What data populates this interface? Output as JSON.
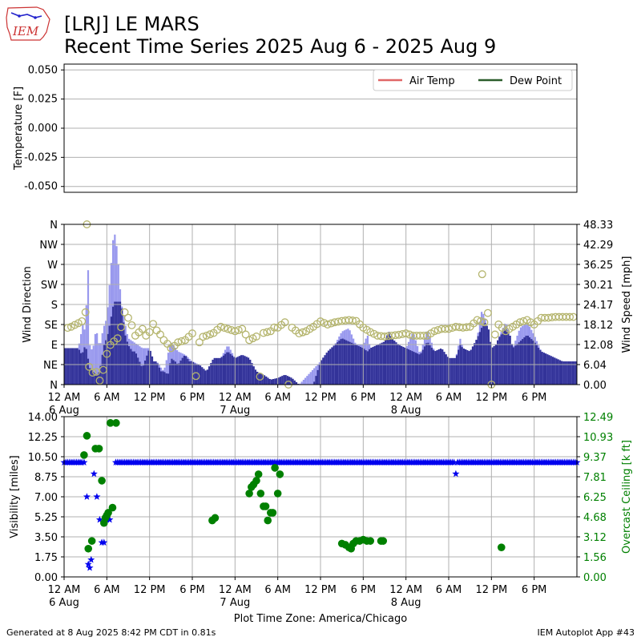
{
  "header": {
    "title_line1": "[LRJ] LE MARS",
    "title_line2": "Recent Time Series 2025 Aug 6 - 2025 Aug 9",
    "logo_text": "IEM"
  },
  "footer": {
    "left": "Generated at 8 Aug 2025 8:42 PM CDT in 0.81s",
    "right": "IEM Autoplot App #43"
  },
  "colors": {
    "air_temp": "#e06666",
    "dew_point": "#2b5d2b",
    "gust_bar": "#9999ee",
    "speed_bar": "#333399",
    "direction": "#b5b56e",
    "visibility": "#0000ee",
    "ceiling": "#008000",
    "grid": "#b0b0b0"
  },
  "chart_data": [
    {
      "type": "line",
      "name": "temperature",
      "ylabel": "Temperature [F]",
      "ylim": [
        -0.055,
        0.055
      ],
      "yticks": [
        "-0.050",
        "-0.025",
        "0.000",
        "0.025",
        "0.050"
      ],
      "ytick_values": [
        -0.05,
        -0.025,
        0,
        0.025,
        0.05
      ],
      "legend": {
        "placement": "top-right",
        "entries": [
          "Air Temp",
          "Dew Point"
        ]
      },
      "series": [
        {
          "name": "Air Temp",
          "values": []
        },
        {
          "name": "Dew Point",
          "values": []
        }
      ],
      "grid": true
    },
    {
      "type": "bar",
      "name": "wind",
      "ylabel": "Wind Direction",
      "y2label": "Wind Speed [mph]",
      "direction_ticks": [
        "N",
        "NE",
        "E",
        "SE",
        "S",
        "SW",
        "W",
        "NW",
        "N"
      ],
      "speed_ticks": [
        "0.00",
        "6.04",
        "12.08",
        "18.12",
        "24.17",
        "30.21",
        "36.25",
        "42.29",
        "48.33"
      ],
      "speed_max": 48.33,
      "xlim_hours": [
        0,
        72
      ],
      "x_ticks": [
        "12 AM",
        "6 AM",
        "12 PM",
        "6 PM",
        "12 AM",
        "6 AM",
        "12 PM",
        "6 PM",
        "12 AM",
        "6 AM",
        "12 PM",
        "6 PM"
      ],
      "x_tick_hours": [
        0,
        6,
        12,
        18,
        24,
        30,
        36,
        42,
        48,
        54,
        60,
        66
      ],
      "x_date_labels": [
        {
          "hour": 0,
          "label": "6 Aug"
        },
        {
          "hour": 24,
          "label": "7 Aug"
        },
        {
          "hour": 48,
          "label": "8 Aug"
        }
      ],
      "speed_knots": [
        [
          0,
          11
        ],
        [
          2,
          11
        ],
        [
          2.5,
          9
        ],
        [
          3,
          12
        ],
        [
          3.2,
          10
        ],
        [
          3.6,
          5
        ],
        [
          4,
          4
        ],
        [
          4.6,
          3
        ],
        [
          5,
          4
        ],
        [
          5.6,
          12
        ],
        [
          6,
          14
        ],
        [
          6.5,
          19
        ],
        [
          7,
          25
        ],
        [
          8,
          25
        ],
        [
          8.6,
          15
        ],
        [
          9,
          12
        ],
        [
          9.6,
          10
        ],
        [
          10,
          10
        ],
        [
          11,
          5
        ],
        [
          12,
          11
        ],
        [
          12.6,
          7
        ],
        [
          13,
          7
        ],
        [
          13.6,
          4
        ],
        [
          14,
          4
        ],
        [
          14.6,
          3
        ],
        [
          15,
          8
        ],
        [
          15.6,
          7
        ],
        [
          16,
          6
        ],
        [
          16.6,
          8
        ],
        [
          17,
          9
        ],
        [
          17.6,
          7
        ],
        [
          18,
          7
        ],
        [
          18.6,
          6
        ],
        [
          19,
          6
        ],
        [
          20,
          4
        ],
        [
          21,
          8
        ],
        [
          22,
          8
        ],
        [
          23,
          10
        ],
        [
          24,
          8
        ],
        [
          25,
          9
        ],
        [
          26,
          8
        ],
        [
          27,
          4
        ],
        [
          28,
          3
        ],
        [
          29,
          1.5
        ],
        [
          30,
          2
        ],
        [
          31,
          3
        ],
        [
          32,
          2
        ],
        [
          33,
          0
        ],
        [
          34,
          0
        ],
        [
          35,
          0
        ],
        [
          36,
          7
        ],
        [
          37,
          10
        ],
        [
          38,
          12
        ],
        [
          39,
          14
        ],
        [
          40,
          13
        ],
        [
          41,
          12
        ],
        [
          42,
          11
        ],
        [
          42.6,
          10
        ],
        [
          43,
          11
        ],
        [
          44,
          12
        ],
        [
          45,
          13
        ],
        [
          45.6,
          16
        ],
        [
          46,
          14
        ],
        [
          47,
          12
        ],
        [
          48,
          11
        ],
        [
          49,
          10
        ],
        [
          50,
          9
        ],
        [
          51,
          13
        ],
        [
          52,
          10
        ],
        [
          53,
          11
        ],
        [
          54,
          8
        ],
        [
          55,
          8
        ],
        [
          55.6,
          12
        ],
        [
          56,
          11
        ],
        [
          57,
          10
        ],
        [
          58,
          14
        ],
        [
          59,
          19
        ],
        [
          59.6,
          17
        ],
        [
          60,
          11
        ],
        [
          60.6,
          12
        ],
        [
          61,
          14
        ],
        [
          62,
          17
        ],
        [
          62.6,
          15
        ],
        [
          63,
          11
        ],
        [
          64,
          13
        ],
        [
          65,
          15
        ],
        [
          66,
          13
        ],
        [
          67,
          10
        ],
        [
          68,
          9
        ],
        [
          69,
          8
        ],
        [
          70,
          7
        ],
        [
          72,
          7
        ]
      ],
      "gust_knots": [
        [
          0,
          11
        ],
        [
          2,
          11
        ],
        [
          2.8,
          20
        ],
        [
          3,
          11
        ],
        [
          3.3,
          42
        ],
        [
          3.6,
          12
        ],
        [
          4,
          10
        ],
        [
          4.5,
          17
        ],
        [
          5,
          11
        ],
        [
          5.5,
          17
        ],
        [
          6,
          20
        ],
        [
          6.6,
          36
        ],
        [
          7,
          47
        ],
        [
          7.5,
          40
        ],
        [
          8,
          25
        ],
        [
          8.6,
          18
        ],
        [
          9,
          14
        ],
        [
          11,
          11
        ],
        [
          12,
          11
        ],
        [
          12.5,
          7
        ],
        [
          13,
          7
        ],
        [
          14,
          4
        ],
        [
          15,
          13
        ],
        [
          16,
          10
        ],
        [
          17,
          9
        ],
        [
          18,
          7
        ],
        [
          19,
          6
        ],
        [
          20,
          4
        ],
        [
          21,
          8
        ],
        [
          22,
          8
        ],
        [
          23,
          12
        ],
        [
          24,
          8
        ],
        [
          25,
          9
        ],
        [
          26,
          8
        ],
        [
          27,
          4
        ],
        [
          28,
          3
        ],
        [
          29,
          1.5
        ],
        [
          33,
          0
        ],
        [
          36,
          7
        ],
        [
          37,
          10
        ],
        [
          38,
          12
        ],
        [
          39,
          16
        ],
        [
          40,
          17
        ],
        [
          41,
          12
        ],
        [
          42,
          12
        ],
        [
          42.6,
          15
        ],
        [
          43,
          11
        ],
        [
          44,
          12
        ],
        [
          45,
          13
        ],
        [
          45.6,
          16
        ],
        [
          46,
          14
        ],
        [
          47,
          12
        ],
        [
          48,
          11
        ],
        [
          49,
          16
        ],
        [
          50,
          9
        ],
        [
          51,
          17
        ],
        [
          52,
          10
        ],
        [
          53,
          11
        ],
        [
          54,
          8
        ],
        [
          55,
          8
        ],
        [
          55.6,
          14
        ],
        [
          56,
          11
        ],
        [
          57,
          10
        ],
        [
          58,
          14
        ],
        [
          58.6,
          22
        ],
        [
          59,
          21
        ],
        [
          59.6,
          15
        ],
        [
          60,
          5
        ],
        [
          60.6,
          6
        ],
        [
          61,
          14
        ],
        [
          62,
          19
        ],
        [
          62.6,
          15
        ],
        [
          63,
          11
        ],
        [
          64,
          17
        ],
        [
          65,
          19
        ],
        [
          66,
          15
        ],
        [
          67,
          10
        ],
        [
          68,
          9
        ],
        [
          69,
          8
        ],
        [
          70,
          7
        ],
        [
          72,
          7
        ]
      ],
      "direction_knots": [
        [
          0,
          125
        ],
        [
          1,
          130
        ],
        [
          2,
          138
        ],
        [
          2.8,
          145
        ],
        [
          3.2,
          180
        ],
        [
          3.5,
          40
        ],
        [
          3.9,
          25
        ],
        [
          4.4,
          35
        ],
        [
          4.8,
          10
        ],
        [
          5.2,
          8
        ],
        [
          5.8,
          58
        ],
        [
          6.2,
          80
        ],
        [
          6.7,
          95
        ],
        [
          7.4,
          100
        ],
        [
          7.9,
          120
        ],
        [
          8.4,
          165
        ],
        [
          9,
          150
        ],
        [
          9.6,
          130
        ],
        [
          10,
          110
        ],
        [
          11,
          125
        ],
        [
          11.5,
          110
        ],
        [
          12,
          118
        ],
        [
          12.4,
          140
        ],
        [
          12.8,
          125
        ],
        [
          13.4,
          115
        ],
        [
          14,
          100
        ],
        [
          14.6,
          90
        ],
        [
          15,
          82
        ],
        [
          15.6,
          88
        ],
        [
          16,
          95
        ],
        [
          17,
          100
        ],
        [
          18,
          115
        ],
        [
          18.6,
          0
        ],
        [
          19,
          95
        ],
        [
          19.6,
          110
        ],
        [
          20,
          110
        ],
        [
          21,
          116
        ],
        [
          22,
          130
        ],
        [
          23,
          125
        ],
        [
          24,
          120
        ],
        [
          25,
          125
        ],
        [
          26,
          100
        ],
        [
          27,
          108
        ],
        [
          27.6,
          0
        ],
        [
          28,
          116
        ],
        [
          29,
          120
        ],
        [
          29.6,
          130
        ],
        [
          30,
          128
        ],
        [
          31,
          140
        ],
        [
          31.5,
          0
        ],
        [
          32,
          128
        ],
        [
          33,
          115
        ],
        [
          34,
          120
        ],
        [
          35,
          130
        ],
        [
          36,
          142
        ],
        [
          37,
          135
        ],
        [
          38,
          140
        ],
        [
          39,
          143
        ],
        [
          40,
          145
        ],
        [
          41,
          143
        ],
        [
          42,
          128
        ],
        [
          43,
          118
        ],
        [
          44,
          110
        ],
        [
          45,
          108
        ],
        [
          46,
          110
        ],
        [
          47,
          112
        ],
        [
          48,
          115
        ],
        [
          49,
          110
        ],
        [
          50,
          110
        ],
        [
          51,
          110
        ],
        [
          52,
          120
        ],
        [
          53,
          125
        ],
        [
          54,
          125
        ],
        [
          55,
          130
        ],
        [
          56,
          128
        ],
        [
          57,
          130
        ],
        [
          58,
          145
        ],
        [
          59,
          140
        ],
        [
          59.6,
          165
        ],
        [
          60,
          0
        ],
        [
          60.6,
          135
        ],
        [
          61,
          135
        ],
        [
          62,
          120
        ],
        [
          63,
          130
        ],
        [
          64,
          140
        ],
        [
          65,
          145
        ],
        [
          66,
          135
        ],
        [
          67,
          150
        ],
        [
          68,
          150
        ],
        [
          69,
          152
        ],
        [
          70,
          152
        ],
        [
          72,
          152
        ]
      ],
      "direction_special": [
        {
          "hour": 3.2,
          "deg": 360
        },
        {
          "hour": 58.7,
          "deg": 248
        }
      ],
      "grid": true
    },
    {
      "type": "scatter",
      "name": "visibility",
      "ylabel": "Visibility [miles]",
      "y2label": "Overcast Ceiling [k ft]",
      "ylim": [
        0,
        14
      ],
      "yticks": [
        "0.00",
        "1.75",
        "3.50",
        "5.25",
        "7.00",
        "8.75",
        "10.50",
        "12.25",
        "14.00"
      ],
      "y2ticks": [
        "0.00",
        "1.56",
        "3.12",
        "4.68",
        "6.25",
        "7.81",
        "9.37",
        "10.93",
        "12.49"
      ],
      "y2lim": [
        0,
        12.49
      ],
      "x_ticks": [
        "12 AM",
        "6 AM",
        "12 PM",
        "6 PM",
        "12 AM",
        "6 AM",
        "12 PM",
        "6 PM",
        "12 AM",
        "6 AM",
        "12 PM",
        "6 PM"
      ],
      "x_tick_hours": [
        0,
        6,
        12,
        18,
        24,
        30,
        36,
        42,
        48,
        54,
        60,
        66
      ],
      "x_date_labels": [
        {
          "hour": 0,
          "label": "6 Aug"
        },
        {
          "hour": 24,
          "label": "7 Aug"
        },
        {
          "hour": 48,
          "label": "8 Aug"
        }
      ],
      "xlabel": "Plot Time Zone: America/Chicago",
      "visibility_dips": [
        [
          2.8,
          10
        ],
        [
          3.2,
          7
        ],
        [
          3.4,
          1.1
        ],
        [
          3.6,
          0.8
        ],
        [
          3.8,
          1.5
        ],
        [
          4.2,
          9
        ],
        [
          4.6,
          7
        ],
        [
          5.0,
          5
        ],
        [
          5.3,
          3
        ],
        [
          5.6,
          3
        ],
        [
          6.0,
          5
        ],
        [
          6.4,
          5
        ],
        [
          6.8,
          6
        ],
        [
          55,
          9
        ]
      ],
      "visibility_flat": 10,
      "ceiling_points": [
        [
          2.8,
          9.5
        ],
        [
          3.2,
          11
        ],
        [
          3.4,
          2.2
        ],
        [
          3.9,
          2.8
        ],
        [
          4.4,
          10
        ],
        [
          4.9,
          10
        ],
        [
          5.3,
          7.5
        ],
        [
          5.6,
          4.2
        ],
        [
          5.8,
          4.6
        ],
        [
          6.0,
          4.8
        ],
        [
          6.2,
          5.0
        ],
        [
          6.5,
          12
        ],
        [
          6.8,
          5.4
        ],
        [
          7.3,
          12
        ],
        [
          20.8,
          4.4
        ],
        [
          21.2,
          4.6
        ],
        [
          26,
          6.5
        ],
        [
          26.3,
          7.0
        ],
        [
          26.6,
          7.2
        ],
        [
          27,
          7.5
        ],
        [
          27.3,
          8.0
        ],
        [
          27.6,
          6.5
        ],
        [
          28,
          5.5
        ],
        [
          28.3,
          5.5
        ],
        [
          28.6,
          4.4
        ],
        [
          29,
          5.0
        ],
        [
          29.3,
          5.0
        ],
        [
          29.6,
          8.5
        ],
        [
          30,
          6.5
        ],
        [
          30.3,
          8.0
        ],
        [
          39,
          2.6
        ],
        [
          39.5,
          2.5
        ],
        [
          40,
          2.3
        ],
        [
          40.3,
          2.2
        ],
        [
          40.6,
          2.6
        ],
        [
          41,
          2.8
        ],
        [
          41.5,
          2.8
        ],
        [
          42,
          2.9
        ],
        [
          42.5,
          2.8
        ],
        [
          43,
          2.8
        ],
        [
          44.5,
          2.8
        ],
        [
          44.8,
          2.8
        ],
        [
          61.4,
          2.3
        ]
      ],
      "grid": true
    }
  ]
}
